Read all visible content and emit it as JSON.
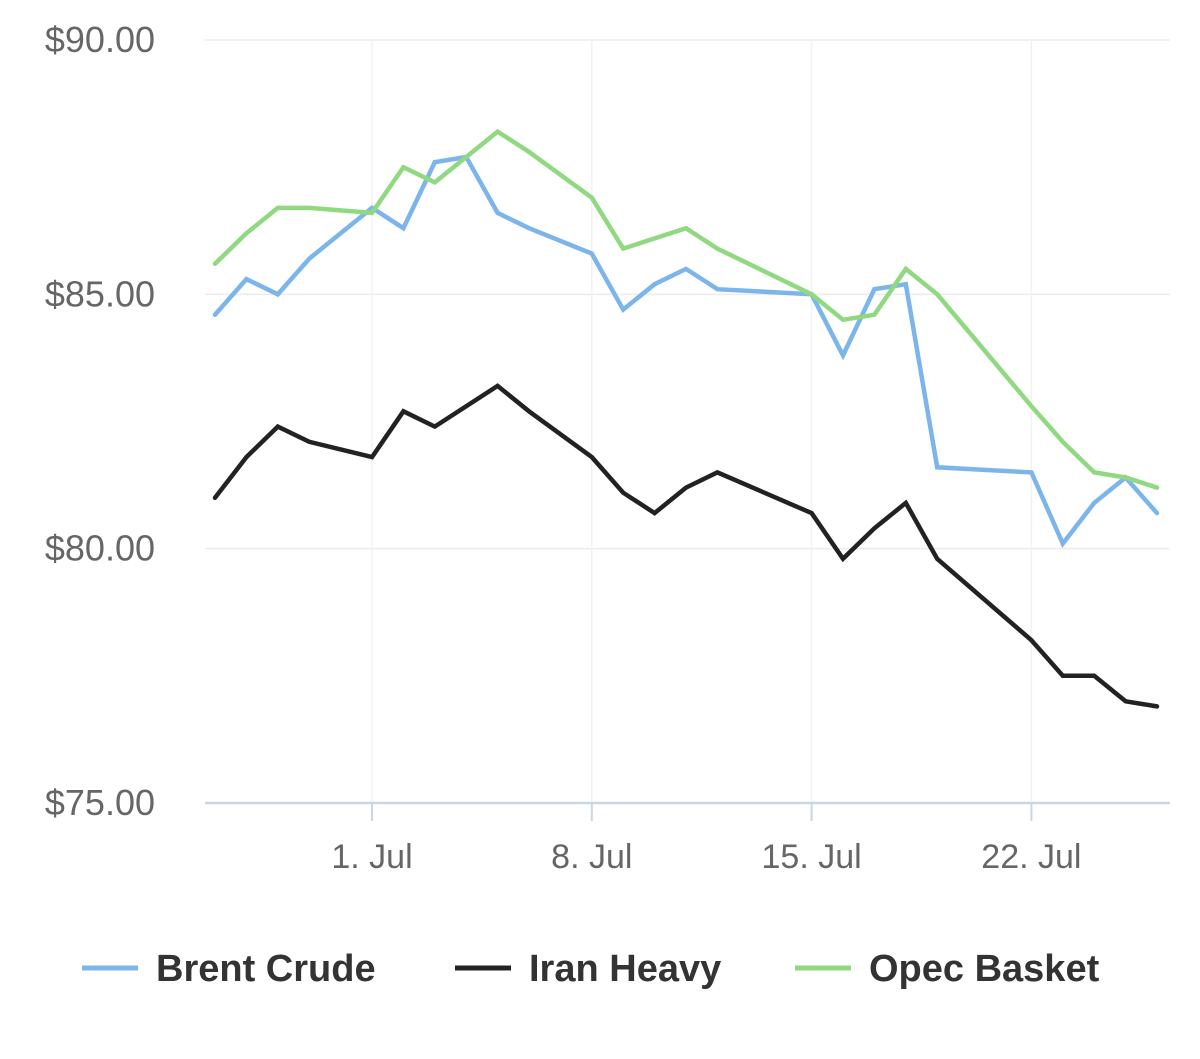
{
  "chart_data": {
    "type": "line",
    "title": "",
    "xlabel": "",
    "ylabel": "",
    "x_dates": [
      "2019-06-26",
      "2019-06-27",
      "2019-06-28",
      "2019-06-29",
      "2019-07-01",
      "2019-07-02",
      "2019-07-03",
      "2019-07-04",
      "2019-07-05",
      "2019-07-06",
      "2019-07-08",
      "2019-07-09",
      "2019-07-10",
      "2019-07-11",
      "2019-07-12",
      "2019-07-15",
      "2019-07-16",
      "2019-07-17",
      "2019-07-18",
      "2019-07-19",
      "2019-07-22",
      "2019-07-23",
      "2019-07-24",
      "2019-07-25",
      "2019-07-26"
    ],
    "ylim": [
      75,
      90
    ],
    "yticks": [
      75,
      80,
      85,
      90
    ],
    "ytick_labels": [
      "$75.00",
      "$80.00",
      "$85.00",
      "$90.00"
    ],
    "xticks": [
      "2019-07-01",
      "2019-07-08",
      "2019-07-15",
      "2019-07-22"
    ],
    "xtick_labels": [
      "1. Jul",
      "8. Jul",
      "15. Jul",
      "22. Jul"
    ],
    "grid": true,
    "legend_position": "bottom",
    "series": [
      {
        "name": "Brent Crude",
        "color": "#7cb5ec",
        "values": [
          84.6,
          85.3,
          85.0,
          85.7,
          86.7,
          86.3,
          87.6,
          87.7,
          86.6,
          86.3,
          85.8,
          84.7,
          85.2,
          85.5,
          85.1,
          85.0,
          83.8,
          85.1,
          85.2,
          81.6,
          81.5,
          80.1,
          80.9,
          81.4,
          80.7
        ]
      },
      {
        "name": "Iran Heavy",
        "color": "#222222",
        "values": [
          81.0,
          81.8,
          82.4,
          82.1,
          81.8,
          82.7,
          82.4,
          82.8,
          83.2,
          82.7,
          81.8,
          81.1,
          80.7,
          81.2,
          81.5,
          80.7,
          79.8,
          80.4,
          80.9,
          79.8,
          78.2,
          77.5,
          77.5,
          77.0,
          76.9
        ]
      },
      {
        "name": "Opec Basket",
        "color": "#90d981",
        "values": [
          85.6,
          86.2,
          86.7,
          86.7,
          86.6,
          87.5,
          87.2,
          87.7,
          88.2,
          87.8,
          86.9,
          85.9,
          86.1,
          86.3,
          85.9,
          85.0,
          84.5,
          84.6,
          85.5,
          85.0,
          82.8,
          82.1,
          81.5,
          81.4,
          81.2
        ]
      }
    ]
  }
}
